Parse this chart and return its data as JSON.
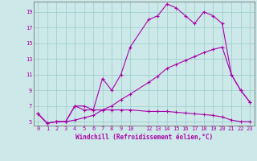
{
  "xlabel": "Windchill (Refroidissement éolien,°C)",
  "line_color": "#aa00aa",
  "bg_color": "#cce8e8",
  "grid_color": "#99cccc",
  "xlim_min": -0.5,
  "xlim_max": 23.5,
  "ylim_min": 4.5,
  "ylim_max": 20.3,
  "xticks": [
    0,
    1,
    2,
    3,
    4,
    5,
    6,
    7,
    8,
    9,
    10,
    12,
    13,
    14,
    15,
    16,
    17,
    18,
    19,
    20,
    21,
    22,
    23
  ],
  "yticks": [
    5,
    7,
    9,
    11,
    13,
    15,
    17,
    19
  ],
  "line1_x": [
    0,
    1,
    2,
    3,
    4,
    5,
    6,
    7,
    8,
    9,
    10,
    12,
    13,
    14,
    15,
    16,
    17,
    18,
    19,
    20,
    21,
    22,
    23
  ],
  "line1_y": [
    6.0,
    4.8,
    5.0,
    5.0,
    7.0,
    7.0,
    6.5,
    10.5,
    9.0,
    11.0,
    14.5,
    18.0,
    18.5,
    20.0,
    19.5,
    18.5,
    17.5,
    19.0,
    18.5,
    17.5,
    11.0,
    9.0,
    7.5
  ],
  "line2_x": [
    0,
    1,
    2,
    3,
    4,
    5,
    6,
    7,
    8,
    9,
    10,
    12,
    13,
    14,
    15,
    16,
    17,
    18,
    19,
    20,
    21,
    22,
    23
  ],
  "line2_y": [
    6.0,
    4.8,
    5.0,
    5.0,
    7.0,
    6.5,
    6.5,
    6.5,
    6.5,
    6.5,
    6.5,
    6.3,
    6.3,
    6.3,
    6.2,
    6.1,
    6.0,
    5.9,
    5.8,
    5.6,
    5.2,
    5.0,
    5.0
  ],
  "line3_x": [
    0,
    1,
    2,
    3,
    4,
    5,
    6,
    7,
    8,
    9,
    10,
    12,
    13,
    14,
    15,
    16,
    17,
    18,
    19,
    20,
    21,
    22,
    23
  ],
  "line3_y": [
    6.0,
    4.8,
    5.0,
    5.0,
    5.2,
    5.5,
    5.8,
    6.5,
    7.0,
    7.8,
    8.5,
    10.0,
    10.8,
    11.8,
    12.3,
    12.8,
    13.3,
    13.8,
    14.2,
    14.5,
    11.0,
    9.0,
    7.5
  ],
  "marker": "+",
  "markersize": 3,
  "linewidth": 0.8,
  "xlabel_fontsize": 5.5,
  "tick_fontsize": 5.0
}
